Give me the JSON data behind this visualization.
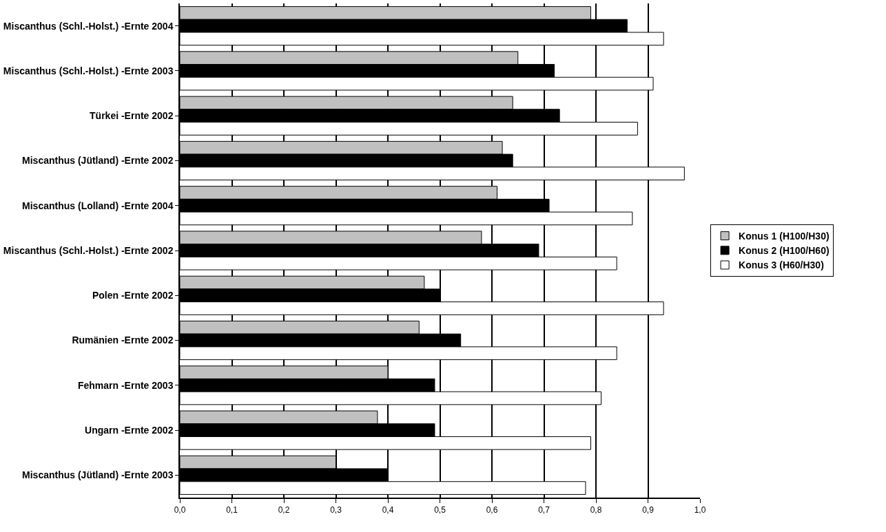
{
  "chart_data": {
    "type": "bar",
    "orientation": "horizontal",
    "categories": [
      "Miscanthus (Schl.-Holst.) -Ernte 2004",
      "Miscanthus (Schl.-Holst.) -Ernte 2003",
      "Türkei -Ernte 2002",
      "Miscanthus (Jütland) -Ernte 2002",
      "Miscanthus (Lolland) -Ernte 2004",
      "Miscanthus (Schl.-Holst.) -Ernte 2002",
      "Polen -Ernte 2002",
      "Rumänien -Ernte 2002",
      "Fehmarn -Ernte 2003",
      "Ungarn -Ernte 2002",
      "Miscanthus (Jütland) -Ernte 2003"
    ],
    "series": [
      {
        "name": "Konus 1 (H100/H30)",
        "color": "#c0c0c0",
        "values": [
          0.79,
          0.65,
          0.64,
          0.62,
          0.61,
          0.58,
          0.47,
          0.46,
          0.4,
          0.38,
          0.3
        ]
      },
      {
        "name": "Konus 2 (H100/H60)",
        "color": "#000000",
        "values": [
          0.86,
          0.72,
          0.73,
          0.64,
          0.71,
          0.69,
          0.5,
          0.54,
          0.49,
          0.49,
          0.4
        ]
      },
      {
        "name": "Konus 3 (H60/H30)",
        "color": "#ffffff",
        "values": [
          0.93,
          0.91,
          0.88,
          0.97,
          0.87,
          0.84,
          0.93,
          0.84,
          0.81,
          0.79,
          0.78
        ]
      }
    ],
    "xlim": [
      0,
      1
    ],
    "xticks": [
      {
        "value": 0,
        "label": "0,0"
      },
      {
        "value": 0.1,
        "label": "0,1"
      },
      {
        "value": 0.2,
        "label": "0,2"
      },
      {
        "value": 0.3,
        "label": "0,3"
      },
      {
        "value": 0.4,
        "label": "0,4"
      },
      {
        "value": 0.5,
        "label": "0,5"
      },
      {
        "value": 0.6,
        "label": "0,6"
      },
      {
        "value": 0.7,
        "label": "0,7"
      },
      {
        "value": 0.8,
        "label": "0,8"
      },
      {
        "value": 0.9,
        "label": "0,9"
      },
      {
        "value": 1.0,
        "label": "1,0"
      }
    ],
    "grid": "x",
    "legend": "right"
  }
}
